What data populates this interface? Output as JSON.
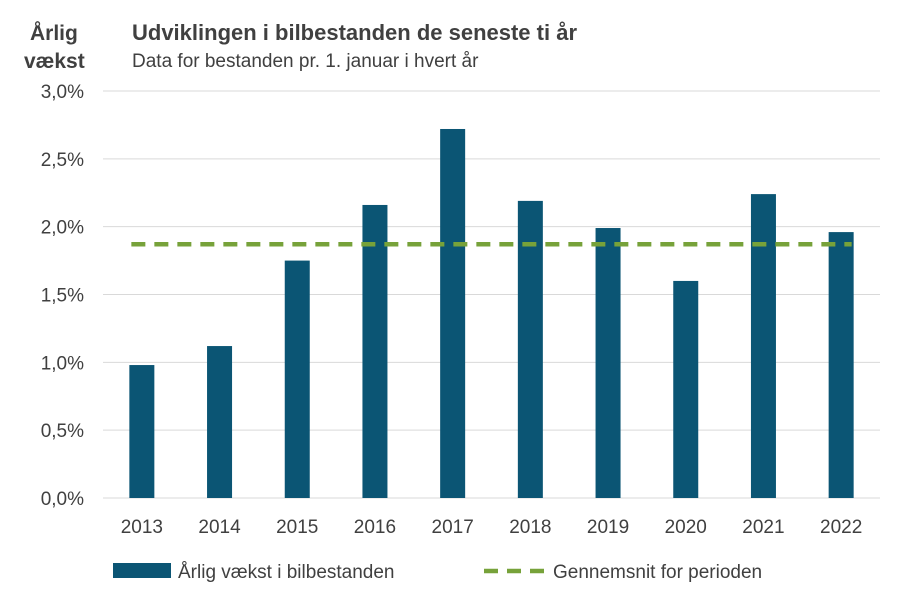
{
  "colors": {
    "bar": "#0b5574",
    "average_line": "#77a23a",
    "grid": "#d9d9d9",
    "text": "#404040"
  },
  "chart_data": {
    "type": "bar",
    "title": "Udviklingen i bilbestanden de seneste ti år",
    "subtitle": "Data for bestanden pr. 1. januar i hvert år",
    "ylabel_line1": "Årlig",
    "ylabel_line2": "vækst",
    "xlabel": "",
    "ylim": [
      0,
      3.0
    ],
    "ytick_values": [
      0,
      0.5,
      1.0,
      1.5,
      2.0,
      2.5,
      3.0
    ],
    "ytick_labels": [
      "0,0%",
      "0,5%",
      "1,0%",
      "1,5%",
      "2,0%",
      "2,5%",
      "3,0%"
    ],
    "grid": true,
    "categories": [
      "2013",
      "2014",
      "2015",
      "2016",
      "2017",
      "2018",
      "2019",
      "2020",
      "2021",
      "2022"
    ],
    "series": [
      {
        "name": "Årlig vækst i bilbestanden",
        "type": "bar",
        "values": [
          0.98,
          1.12,
          1.75,
          2.16,
          2.72,
          2.19,
          1.99,
          1.6,
          2.24,
          1.96
        ]
      },
      {
        "name": "Gennemsnit for perioden",
        "type": "line",
        "style": "dashed",
        "value": 1.87
      }
    ],
    "legend_position": "bottom-left"
  }
}
